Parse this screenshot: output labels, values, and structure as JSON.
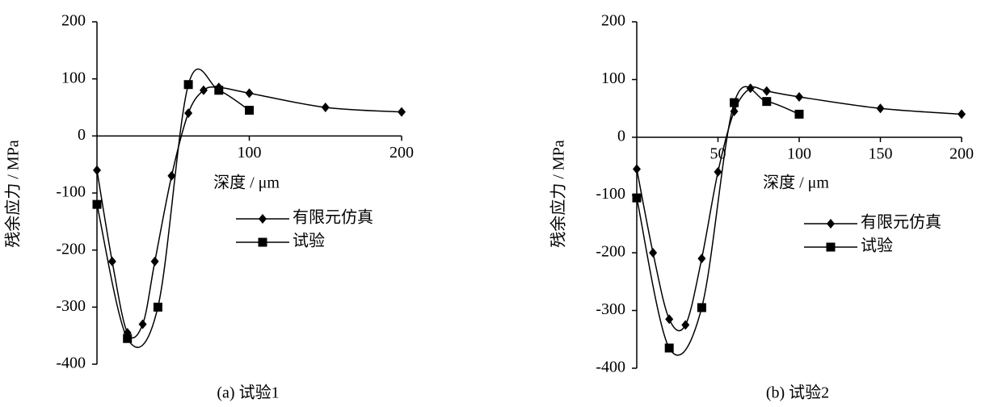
{
  "chart_data": [
    {
      "type": "line",
      "caption": "(a)  试验1",
      "x_label": "深度 / μm",
      "y_label": "残余应力 / MPa",
      "xlim": [
        0,
        200
      ],
      "ylim": [
        -400,
        200
      ],
      "xticks": [
        100,
        200
      ],
      "yticks": [
        -400,
        -300,
        -200,
        -100,
        0,
        100,
        200
      ],
      "series": [
        {
          "name": "有限元仿真",
          "color": "#000000",
          "marker": "diamond",
          "x": [
            0,
            10,
            20,
            30,
            38,
            49,
            60,
            70,
            80,
            100,
            150,
            200
          ],
          "values": [
            -60,
            -220,
            -345,
            -330,
            -220,
            -70,
            40,
            80,
            85,
            75,
            50,
            42
          ]
        },
        {
          "name": "试验",
          "color": "#000000",
          "marker": "square",
          "x": [
            0,
            20,
            40,
            60,
            80,
            100
          ],
          "values": [
            -120,
            -355,
            -300,
            90,
            80,
            45
          ]
        }
      ]
    },
    {
      "type": "line",
      "caption": "(b)  试验2",
      "x_label": "深度 / μm",
      "y_label": "残余应力 / MPa",
      "xlim": [
        0,
        200
      ],
      "ylim": [
        -400,
        200
      ],
      "xticks": [
        50,
        100,
        150,
        200
      ],
      "yticks": [
        -400,
        -300,
        -200,
        -100,
        0,
        100,
        200
      ],
      "series": [
        {
          "name": "有限元仿真",
          "color": "#000000",
          "marker": "diamond",
          "x": [
            0,
            10,
            20,
            30,
            40,
            50,
            60,
            70,
            80,
            100,
            150,
            200
          ],
          "values": [
            -55,
            -200,
            -315,
            -325,
            -210,
            -60,
            45,
            85,
            80,
            70,
            50,
            40
          ]
        },
        {
          "name": "试验",
          "color": "#000000",
          "marker": "square",
          "x": [
            0,
            20,
            40,
            60,
            80,
            100
          ],
          "values": [
            -105,
            -365,
            -295,
            60,
            62,
            40
          ]
        }
      ]
    }
  ]
}
